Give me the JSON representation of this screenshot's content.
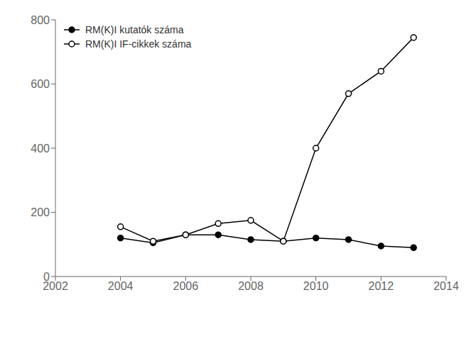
{
  "chart_data": {
    "type": "line",
    "x": [
      2004,
      2005,
      2006,
      2007,
      2008,
      2009,
      2010,
      2011,
      2012,
      2013
    ],
    "series": [
      {
        "name": "RM(K)I kutatók száma",
        "color": "#000000",
        "marker": "circle",
        "values": [
          120,
          105,
          130,
          130,
          115,
          110,
          120,
          115,
          95,
          90
        ]
      },
      {
        "name": "RM(K)I IF-cikkek száma",
        "color": "#000000",
        "marker": "open_circle",
        "values": [
          155,
          110,
          130,
          165,
          175,
          110,
          400,
          570,
          640,
          745
        ]
      }
    ],
    "xlim": [
      2002,
      2014
    ],
    "ylim": [
      0,
      800
    ],
    "xticks": [
      2002,
      2004,
      2006,
      2008,
      2010,
      2012,
      2014
    ],
    "yticks": [
      0,
      200,
      400,
      600,
      800
    ],
    "grid": false,
    "legend": "upper left"
  }
}
